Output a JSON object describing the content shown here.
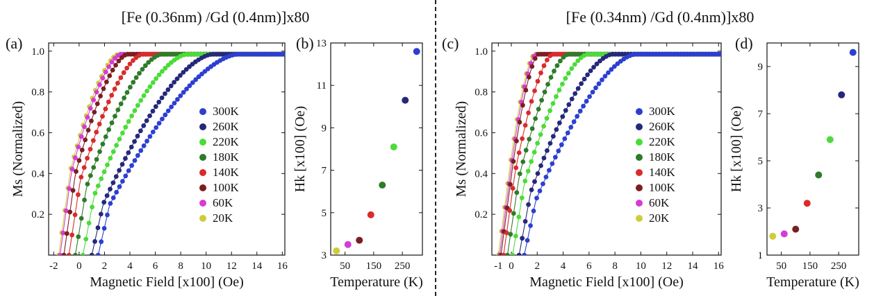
{
  "figure": {
    "titles": [
      "[Fe (0.36nm) /Gd (0.4nm)]x80",
      "[Fe (0.34nm) /Gd (0.4nm)]x80"
    ],
    "panel_labels": [
      "(a)",
      "(b)",
      "(c)",
      "(d)"
    ]
  },
  "colors": {
    "300K": "#2c3fd0",
    "260K": "#25287a",
    "220K": "#4cdb3a",
    "180K": "#2e7b2a",
    "140K": "#d92b2b",
    "100K": "#7a1f1f",
    "60K": "#d63bd6",
    "20K": "#cdcd3a"
  },
  "chart_data": [
    {
      "id": "a",
      "type": "scatter",
      "title": "",
      "xlabel": "Magnetic Field [x100] (Oe)",
      "ylabel": "Ms (Normalized)",
      "xlim": [
        -2.4,
        16.2
      ],
      "ylim": [
        0,
        1.04
      ],
      "xticks": [
        -2,
        0,
        2,
        4,
        6,
        8,
        10,
        12,
        14,
        16
      ],
      "yticks": [
        0.2,
        0.4,
        0.6,
        0.8,
        1.0
      ],
      "ytick_labels": [
        "0.2",
        "0.4",
        "0.6",
        "0.8",
        "1.0"
      ],
      "legend_position": "center-right",
      "series": [
        {
          "name": "300K",
          "x0": 1.5,
          "sat": 12.5
        },
        {
          "name": "260K",
          "x0": 1.0,
          "sat": 10.5
        },
        {
          "name": "220K",
          "x0": 0.3,
          "sat": 8.5
        },
        {
          "name": "180K",
          "x0": -0.3,
          "sat": 6.5
        },
        {
          "name": "140K",
          "x0": -0.8,
          "sat": 5.0
        },
        {
          "name": "100K",
          "x0": -1.2,
          "sat": 3.8
        },
        {
          "name": "60K",
          "x0": -1.5,
          "sat": 3.3
        },
        {
          "name": "20K",
          "x0": -1.6,
          "sat": 3.1
        }
      ]
    },
    {
      "id": "b",
      "type": "scatter",
      "title": "",
      "xlabel": "Temperature (K)",
      "ylabel": "Hk [x100] (Oe)",
      "xlim": [
        0,
        320
      ],
      "ylim": [
        3,
        13
      ],
      "xticks": [
        50,
        150,
        250
      ],
      "yticks": [
        3,
        5,
        7,
        9,
        11,
        13
      ],
      "points": [
        {
          "x": 20,
          "y": 3.2,
          "series": "20K"
        },
        {
          "x": 60,
          "y": 3.5,
          "series": "60K"
        },
        {
          "x": 100,
          "y": 3.7,
          "series": "100K"
        },
        {
          "x": 140,
          "y": 4.9,
          "series": "140K"
        },
        {
          "x": 180,
          "y": 6.3,
          "series": "180K"
        },
        {
          "x": 220,
          "y": 8.1,
          "series": "220K"
        },
        {
          "x": 260,
          "y": 10.3,
          "series": "260K"
        },
        {
          "x": 300,
          "y": 12.6,
          "series": "300K"
        }
      ]
    },
    {
      "id": "c",
      "type": "scatter",
      "title": "",
      "xlabel": "Magnetic Field [x100] (Oe)",
      "ylabel": "Ms (Normalized)",
      "xlim": [
        -1.5,
        16.2
      ],
      "ylim": [
        0,
        1.04
      ],
      "xticks": [
        -1,
        0,
        2,
        4,
        6,
        8,
        10,
        12,
        14,
        16
      ],
      "yticks": [
        0.2,
        0.4,
        0.6,
        0.8,
        1.0
      ],
      "ytick_labels": [
        "0.2",
        "0.4",
        "0.6",
        "0.8",
        "1.0"
      ],
      "legend_position": "center-right",
      "series": [
        {
          "name": "300K",
          "x0": 1.0,
          "sat": 9.6
        },
        {
          "name": "260K",
          "x0": 0.6,
          "sat": 7.8
        },
        {
          "name": "220K",
          "x0": 0.1,
          "sat": 5.9
        },
        {
          "name": "180K",
          "x0": -0.3,
          "sat": 4.4
        },
        {
          "name": "140K",
          "x0": -0.6,
          "sat": 3.2
        },
        {
          "name": "100K",
          "x0": -0.8,
          "sat": 2.1
        },
        {
          "name": "60K",
          "x0": -0.9,
          "sat": 1.9
        },
        {
          "name": "20K",
          "x0": -1.0,
          "sat": 1.8
        }
      ]
    },
    {
      "id": "d",
      "type": "scatter",
      "title": "",
      "xlabel": "Temperature (K)",
      "ylabel": "Hk [x100] (Oe)",
      "xlim": [
        0,
        320
      ],
      "ylim": [
        1,
        10
      ],
      "xticks": [
        50,
        150,
        250
      ],
      "yticks": [
        1,
        3,
        5,
        7,
        9
      ],
      "points": [
        {
          "x": 20,
          "y": 1.8,
          "series": "20K"
        },
        {
          "x": 60,
          "y": 1.9,
          "series": "60K"
        },
        {
          "x": 100,
          "y": 2.1,
          "series": "100K"
        },
        {
          "x": 140,
          "y": 3.2,
          "series": "140K"
        },
        {
          "x": 180,
          "y": 4.4,
          "series": "180K"
        },
        {
          "x": 220,
          "y": 5.9,
          "series": "220K"
        },
        {
          "x": 260,
          "y": 7.8,
          "series": "260K"
        },
        {
          "x": 300,
          "y": 9.6,
          "series": "300K"
        }
      ]
    }
  ]
}
